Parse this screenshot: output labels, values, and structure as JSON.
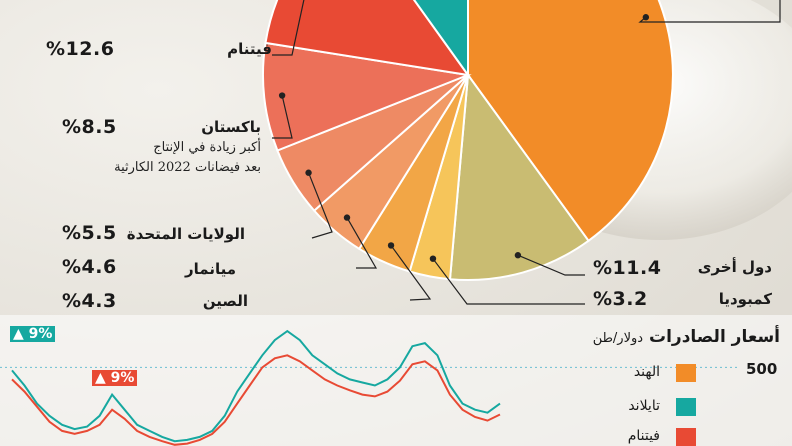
{
  "chart_data": [
    {
      "type": "pie",
      "slices": [
        {
          "label": "الهند",
          "value": 40.0,
          "color": "#f28c28"
        },
        {
          "label": "دول أخرى",
          "value": 11.4,
          "color": "#c9bc72",
          "value_label": "%11.4"
        },
        {
          "label": "كمبوديا",
          "value": 3.2,
          "color": "#f6c55a",
          "value_label": "%3.2"
        },
        {
          "label": "الصين",
          "value": 4.3,
          "color": "#f2a646",
          "value_label": "%4.3"
        },
        {
          "label": "ميانمار",
          "value": 4.6,
          "color": "#f19a65",
          "value_label": "%4.6"
        },
        {
          "label": "الولايات المتحدة",
          "value": 5.5,
          "color": "#ee8a64",
          "value_label": "%5.5"
        },
        {
          "label": "باكستان",
          "value": 8.5,
          "color": "#ec7059",
          "value_label": "%8.5",
          "note": [
            "أكبر زيادة في الإنتاج",
            "بعد فيضانات 2022 الكارثية"
          ]
        },
        {
          "label": "فيتنام",
          "value": 12.6,
          "color": "#e84a34",
          "value_label": "%12.6"
        },
        {
          "label": "تايلاند",
          "value": 9.9,
          "color": "#16a8a0"
        }
      ]
    },
    {
      "type": "line",
      "title": "أسعار الصادرات",
      "unit": "دولار/طن",
      "y_tick": "500",
      "series": [
        {
          "name": "الهند",
          "color": "#f28c28"
        },
        {
          "name": "تايلاند",
          "color": "#16a8a0",
          "change_label": "▲ 9%",
          "values": [
            495,
            470,
            440,
            420,
            405,
            398,
            402,
            420,
            455,
            430,
            405,
            395,
            385,
            378,
            380,
            385,
            395,
            420,
            460,
            490,
            520,
            545,
            560,
            545,
            520,
            505,
            490,
            480,
            475,
            470,
            480,
            500,
            535,
            540,
            520,
            470,
            440,
            430,
            425,
            440
          ]
        },
        {
          "name": "فيتنام",
          "color": "#e84a34",
          "change_label": "▲ 9%",
          "values": [
            480,
            460,
            435,
            410,
            395,
            390,
            395,
            405,
            430,
            415,
            395,
            385,
            378,
            372,
            374,
            380,
            390,
            410,
            440,
            470,
            500,
            515,
            520,
            510,
            495,
            480,
            470,
            462,
            455,
            452,
            460,
            478,
            505,
            510,
            495,
            455,
            430,
            418,
            412,
            422
          ]
        }
      ]
    }
  ]
}
